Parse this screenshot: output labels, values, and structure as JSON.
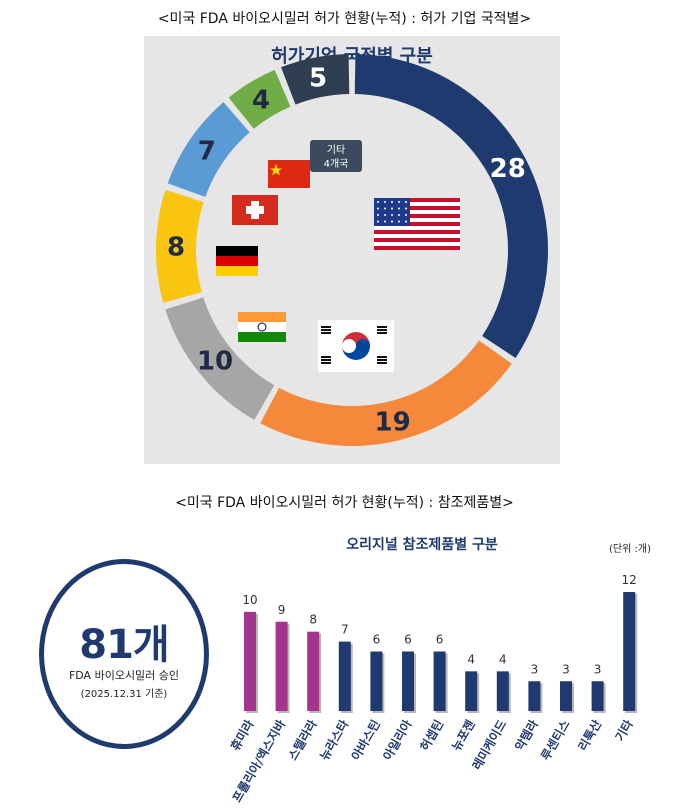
{
  "captions": {
    "top": "<미국 FDA 바이오시밀러 허가 현황(누적) : 허가 기업 국적별>",
    "bottom": "<미국 FDA 바이오시밀러 허가 현황(누적) : 참조제품별>"
  },
  "summary": {
    "count": "81개",
    "line1": "FDA 바이오시밀러 승인",
    "line2": "(2025.12.31 기준)"
  },
  "colors": {
    "navy": "#1f3a6e",
    "orange": "#f5883a",
    "gray": "#a6a6a6",
    "yellow": "#f9c510",
    "blue": "#5b9bd5",
    "green": "#70ad47",
    "dark": "#2f3e50",
    "magenta": "#a3358f"
  },
  "chart_data": [
    {
      "type": "pie",
      "title": "허가기업 국적별 구분",
      "categories": [
        "미국",
        "한국",
        "인도",
        "독일",
        "스위스",
        "중국",
        "기타 4개국"
      ],
      "values": [
        28,
        19,
        10,
        8,
        7,
        4,
        5
      ],
      "colors": [
        "#1f3a6e",
        "#f5883a",
        "#a6a6a6",
        "#f9c510",
        "#5b9bd5",
        "#70ad47",
        "#2f3e50"
      ],
      "annotation": [
        "기타",
        "4개국"
      ],
      "flags": [
        "us-flag",
        "kr-flag",
        "in-flag",
        "de-flag",
        "ch-flag",
        "cn-flag"
      ]
    },
    {
      "type": "bar",
      "title": "오리지널 참조제품별 구분",
      "unit_note": "(단위 :개)",
      "categories": [
        "휴미라",
        "프롤리아/엑스지바",
        "스텔라라",
        "뉴라스타",
        "아바스틴",
        "아일리아",
        "허셉틴",
        "뉴포젠",
        "레미케이드",
        "악템라",
        "루센티스",
        "리툭산",
        "기타"
      ],
      "values": [
        10,
        9,
        8,
        7,
        6,
        6,
        6,
        4,
        4,
        3,
        3,
        3,
        12
      ],
      "colors": [
        "#a3358f",
        "#a3358f",
        "#a3358f",
        "#1f3a6e",
        "#1f3a6e",
        "#1f3a6e",
        "#1f3a6e",
        "#1f3a6e",
        "#1f3a6e",
        "#1f3a6e",
        "#1f3a6e",
        "#1f3a6e",
        "#1f3a6e"
      ],
      "ylim": [
        0,
        12
      ]
    }
  ]
}
